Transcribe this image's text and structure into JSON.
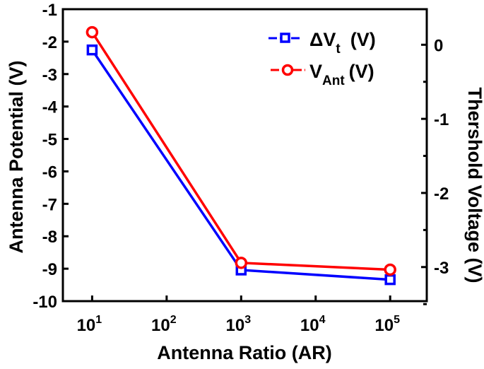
{
  "chart_data": {
    "type": "line",
    "xlabel": "Antenna Ratio (AR)",
    "ylabel_left": "Antenna Potential (V)",
    "ylabel_right": "Thershold Voltage (V)",
    "x_scale": "log",
    "xlim": [
      4.05,
      310000
    ],
    "x_ticks": [
      10,
      100,
      1000,
      10000,
      100000
    ],
    "x_tick_labels": [
      {
        "base": "10",
        "exp": "1"
      },
      {
        "base": "10",
        "exp": "2"
      },
      {
        "base": "10",
        "exp": "3"
      },
      {
        "base": "10",
        "exp": "4"
      },
      {
        "base": "10",
        "exp": "5"
      }
    ],
    "ylim_left": [
      -10,
      -1
    ],
    "y_ticks_left": [
      -1,
      -2,
      -3,
      -4,
      -5,
      -6,
      -7,
      -8,
      -9,
      -10
    ],
    "ylim_right": [
      -3.46,
      0.48
    ],
    "y_ticks_right": [
      0,
      -1,
      -2,
      -3
    ],
    "grid": false,
    "legend_position": "top-right",
    "x": [
      10,
      1000,
      100000
    ],
    "series": [
      {
        "name": "ΔVt (V)",
        "name_main": "ΔV",
        "name_sub": "t",
        "name_unit": "(V)",
        "axis": "right",
        "marker": "square",
        "color": "#0000ff",
        "values": [
          -0.07,
          -3.04,
          -3.17
        ]
      },
      {
        "name": "VAnt (V)",
        "name_main": "V",
        "name_sub": "Ant",
        "name_unit": "(V)",
        "axis": "left",
        "marker": "circle",
        "color": "#ff0000",
        "values": [
          -1.71,
          -8.82,
          -9.03
        ]
      }
    ]
  }
}
